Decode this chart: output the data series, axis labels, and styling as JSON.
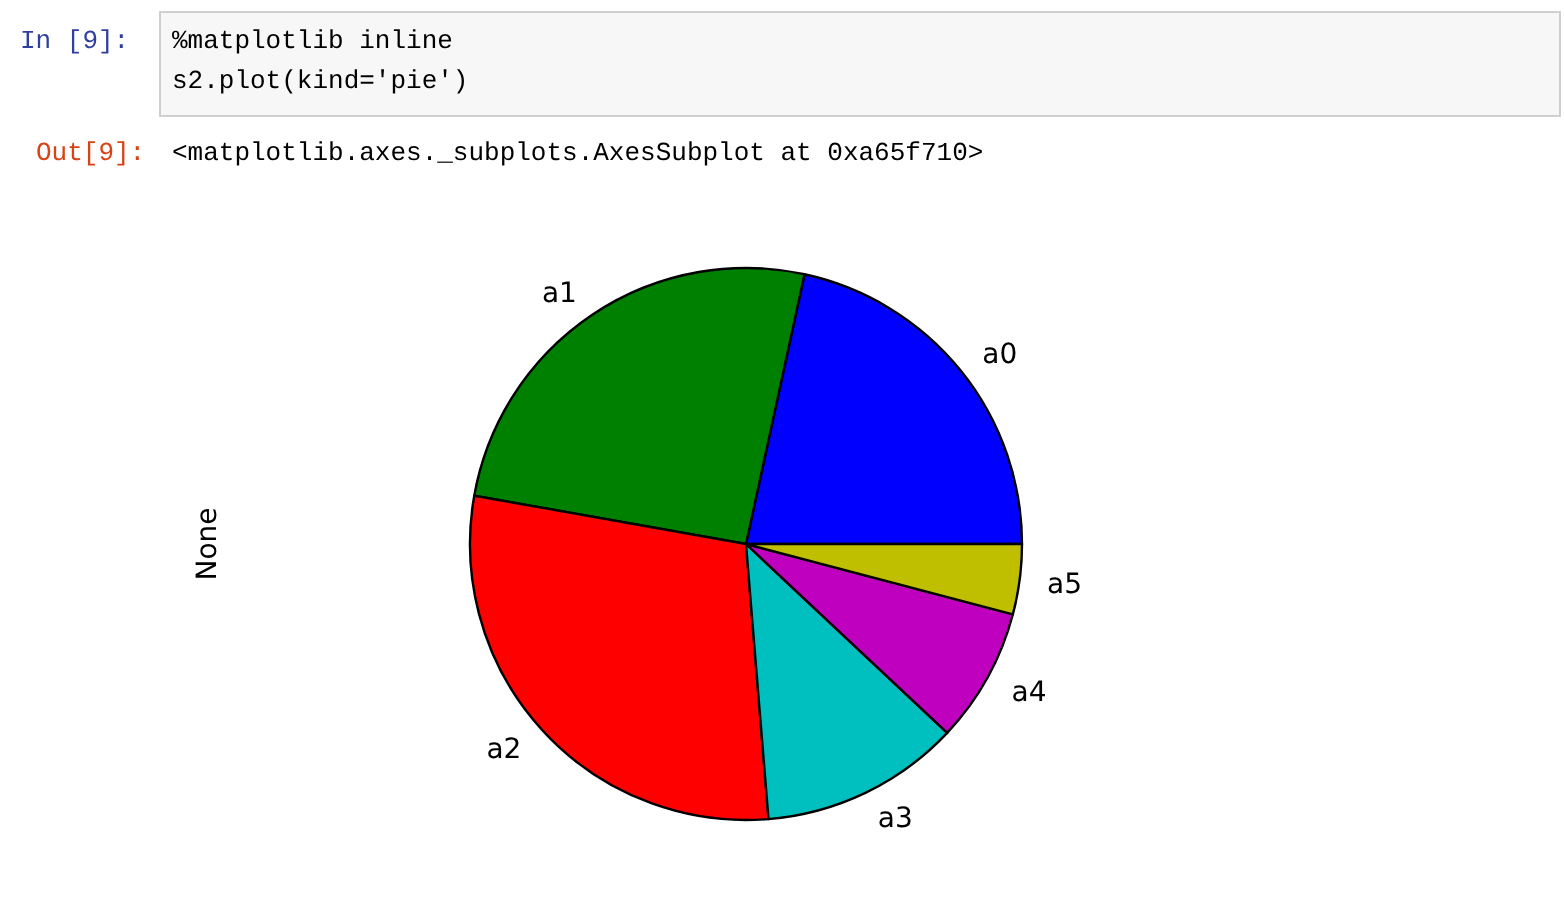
{
  "chart_data": {
    "type": "pie",
    "ylabel": "None",
    "categories": [
      "a0",
      "a1",
      "a2",
      "a3",
      "a4",
      "a5"
    ],
    "values": [
      21.6,
      25.6,
      29.1,
      11.7,
      7.9,
      4.1
    ],
    "colors": [
      "#0000ff",
      "#008000",
      "#ff0000",
      "#00bfbf",
      "#bf00bf",
      "#bfbf00"
    ],
    "annotations": [
      "In [9]:",
      "%matplotlib inline",
      "s2.plot(kind='pie')",
      "Out[9]:",
      "<matplotlib.axes._subplots.AxesSubplot at 0xa65f710>"
    ],
    "legend": false
  }
}
